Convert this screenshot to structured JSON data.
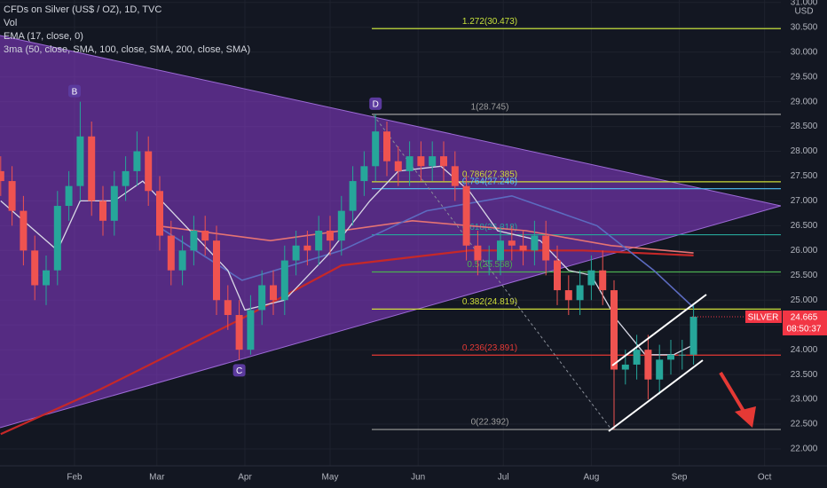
{
  "chart_data": {
    "type": "candlestick",
    "title": "CFDs on Silver (US$ / OZ), 1D, TVC",
    "legend_lines": [
      "Vol",
      "EMA (17, close, 0)",
      "3ma (50, close, SMA, 100, close, SMA, 200, close, SMA)"
    ],
    "xlim": [
      4.75,
      279.75
    ],
    "ylim": [
      21.66,
      31.05
    ],
    "grid": true,
    "up_color": "#26a69a",
    "down_color": "#ef5350",
    "xticks": [
      {
        "value": 31,
        "label": "Feb"
      },
      {
        "value": 60,
        "label": "Mar"
      },
      {
        "value": 91,
        "label": "Apr"
      },
      {
        "value": 121,
        "label": "May"
      },
      {
        "value": 152,
        "label": "Jun"
      },
      {
        "value": 182,
        "label": "Jul"
      },
      {
        "value": 213,
        "label": "Aug"
      },
      {
        "value": 244,
        "label": "Sep"
      },
      {
        "value": 274,
        "label": "Oct"
      }
    ],
    "yticks": [
      {
        "value": 22,
        "label": "22.000"
      },
      {
        "value": 22.5,
        "label": "22.500"
      },
      {
        "value": 23,
        "label": "23.000"
      },
      {
        "value": 23.5,
        "label": "23.500"
      },
      {
        "value": 24,
        "label": "24.000"
      },
      {
        "value": 24.5,
        "label": "24.500"
      },
      {
        "value": 25,
        "label": "25.000"
      },
      {
        "value": 25.5,
        "label": "25.500"
      },
      {
        "value": 26,
        "label": "26.000"
      },
      {
        "value": 26.5,
        "label": "26.500"
      },
      {
        "value": 27,
        "label": "27.000"
      },
      {
        "value": 27.5,
        "label": "27.500"
      },
      {
        "value": 28,
        "label": "28.000"
      },
      {
        "value": 28.5,
        "label": "28.500"
      },
      {
        "value": 29,
        "label": "29.000"
      },
      {
        "value": 29.5,
        "label": "29.500"
      },
      {
        "value": 30,
        "label": "30.000"
      },
      {
        "value": 30.5,
        "label": "30.500"
      },
      {
        "value": 31,
        "label": "31.000"
      }
    ],
    "y_unit": "USD",
    "x": [
      5,
      9,
      13,
      17,
      21,
      25,
      29,
      33,
      37,
      41,
      45,
      49,
      53,
      57,
      61,
      65,
      69,
      73,
      77,
      81,
      85,
      89,
      93,
      97,
      101,
      105,
      109,
      113,
      117,
      121,
      125,
      129,
      133,
      137,
      141,
      145,
      149,
      153,
      157,
      161,
      165,
      169,
      173,
      177,
      181,
      185,
      189,
      193,
      197,
      201,
      205,
      209,
      213,
      217,
      221,
      225,
      229,
      233,
      237,
      241,
      245,
      249
    ],
    "open": [
      27.6,
      27.4,
      26.8,
      26.0,
      25.3,
      25.6,
      26.9,
      27.3,
      28.3,
      27.0,
      26.6,
      27.3,
      27.6,
      28.0,
      27.2,
      26.3,
      25.6,
      26.0,
      26.4,
      26.2,
      25.0,
      24.7,
      24.0,
      24.8,
      25.3,
      25.0,
      25.8,
      26.1,
      26.0,
      26.4,
      26.2,
      26.8,
      27.4,
      27.7,
      28.4,
      27.8,
      27.6,
      27.9,
      27.7,
      27.9,
      27.7,
      27.3,
      26.1,
      25.8,
      25.8,
      26.2,
      26.1,
      26.0,
      26.3,
      25.8,
      25.2,
      25.0,
      25.3,
      25.6,
      25.2,
      23.6,
      23.7,
      24.0,
      23.4,
      23.8,
      23.9,
      23.9
    ],
    "high": [
      27.9,
      27.7,
      27.1,
      26.3,
      25.9,
      27.2,
      27.6,
      29.0,
      28.6,
      27.3,
      27.6,
      27.9,
      28.4,
      28.3,
      27.5,
      26.6,
      26.3,
      26.7,
      26.7,
      26.5,
      25.3,
      25.0,
      25.1,
      25.6,
      25.6,
      26.1,
      26.4,
      26.4,
      26.7,
      26.7,
      27.1,
      27.7,
      28.0,
      28.745,
      28.6,
      28.1,
      28.2,
      28.2,
      28.2,
      28.2,
      28.0,
      27.5,
      26.4,
      26.1,
      26.5,
      26.5,
      26.4,
      26.6,
      26.6,
      26.1,
      25.5,
      25.6,
      25.9,
      26.0,
      25.4,
      24.0,
      24.3,
      24.3,
      24.1,
      24.2,
      24.2,
      24.9
    ],
    "low": [
      27.1,
      26.5,
      25.7,
      25.0,
      24.9,
      25.3,
      26.6,
      27.0,
      26.7,
      26.3,
      26.3,
      27.0,
      27.3,
      26.9,
      26.0,
      25.3,
      25.3,
      25.7,
      25.9,
      24.7,
      24.4,
      23.8,
      23.9,
      24.5,
      24.7,
      24.7,
      25.5,
      25.7,
      25.7,
      25.9,
      25.9,
      26.5,
      27.1,
      27.4,
      27.5,
      27.3,
      27.3,
      27.4,
      27.4,
      27.4,
      27.0,
      25.8,
      25.5,
      25.5,
      25.5,
      25.8,
      25.7,
      25.7,
      25.5,
      24.9,
      24.7,
      24.7,
      25.0,
      24.9,
      22.392,
      23.3,
      23.4,
      23.0,
      23.1,
      23.5,
      23.6,
      23.7
    ],
    "close": [
      27.4,
      26.8,
      26.0,
      25.3,
      25.6,
      26.9,
      27.3,
      28.3,
      27.0,
      26.6,
      27.3,
      27.6,
      28.0,
      27.2,
      26.3,
      25.6,
      26.0,
      26.4,
      26.2,
      25.0,
      24.7,
      24.0,
      24.8,
      25.3,
      25.0,
      25.8,
      26.1,
      26.0,
      26.4,
      26.2,
      26.8,
      27.4,
      27.7,
      28.4,
      27.8,
      27.6,
      27.9,
      27.7,
      27.9,
      27.7,
      27.3,
      26.1,
      25.8,
      25.8,
      26.2,
      26.1,
      26.0,
      26.3,
      25.8,
      25.2,
      25.0,
      25.3,
      25.6,
      25.2,
      23.6,
      23.7,
      24.0,
      23.4,
      23.8,
      23.9,
      23.9,
      24.665
    ],
    "series": [
      {
        "name": "SMA 200",
        "color": "#c62828",
        "width": 2.2,
        "x": [
          5,
          40,
          89,
          125,
          170,
          210,
          249
        ],
        "values": [
          22.3,
          23.2,
          24.6,
          25.7,
          26.0,
          26.0,
          25.9
        ]
      },
      {
        "name": "SMA 100",
        "color": "#e57373",
        "width": 1.6,
        "x": [
          60,
          100,
          150,
          190,
          220,
          249
        ],
        "values": [
          26.5,
          26.2,
          26.6,
          26.4,
          26.1,
          25.95
        ]
      },
      {
        "name": "SMA 50",
        "color": "#5c6bc0",
        "width": 1.6,
        "x": [
          60,
          90,
          125,
          155,
          185,
          215,
          235,
          249
        ],
        "values": [
          26.5,
          25.4,
          26.0,
          26.8,
          27.1,
          26.5,
          25.6,
          24.85
        ]
      },
      {
        "name": "EMA 17",
        "color": "#d9d9e6",
        "width": 1.3,
        "x": [
          5,
          15,
          25,
          33,
          45,
          55,
          65,
          75,
          85,
          91,
          105,
          120,
          135,
          145,
          160,
          170,
          180,
          195,
          205,
          213,
          222,
          232,
          242,
          249
        ],
        "values": [
          27.0,
          26.5,
          26.0,
          27.0,
          27.0,
          27.4,
          26.8,
          26.2,
          25.6,
          24.8,
          25.0,
          25.9,
          27.0,
          27.6,
          27.7,
          27.2,
          26.4,
          26.2,
          25.6,
          25.5,
          24.6,
          23.9,
          23.9,
          24.1
        ]
      }
    ],
    "fib_levels": [
      {
        "label": "1.272(30.473)",
        "price": 30.473,
        "color": "#c6e03b"
      },
      {
        "label": "1(28.745)",
        "price": 28.745,
        "color": "#9e9e9e"
      },
      {
        "label": "0.786(27.385)",
        "price": 27.385,
        "color": "#cddc39"
      },
      {
        "label": "0.764(27.246)",
        "price": 27.246,
        "color": "#4fc3f7"
      },
      {
        "label": "0.618(26.318)",
        "price": 26.318,
        "color": "#26a69a"
      },
      {
        "label": "0.5(25.568)",
        "price": 25.568,
        "color": "#4caf50"
      },
      {
        "label": "0.382(24.819)",
        "price": 24.819,
        "color": "#cddc39"
      },
      {
        "label": "0.236(23.891)",
        "price": 23.891,
        "color": "#e53935"
      },
      {
        "label": "0(22.392)",
        "price": 22.392,
        "color": "#9e9e9e"
      }
    ],
    "points": [
      {
        "label": "B",
        "x": 31,
        "price": 29.0
      },
      {
        "label": "C",
        "x": 89,
        "price": 23.8
      },
      {
        "label": "D",
        "x": 137,
        "price": 28.745
      }
    ],
    "price_badge": {
      "name": "SILVER",
      "value": 24.665,
      "countdown": "08:50:37",
      "color": "#f23645"
    }
  }
}
